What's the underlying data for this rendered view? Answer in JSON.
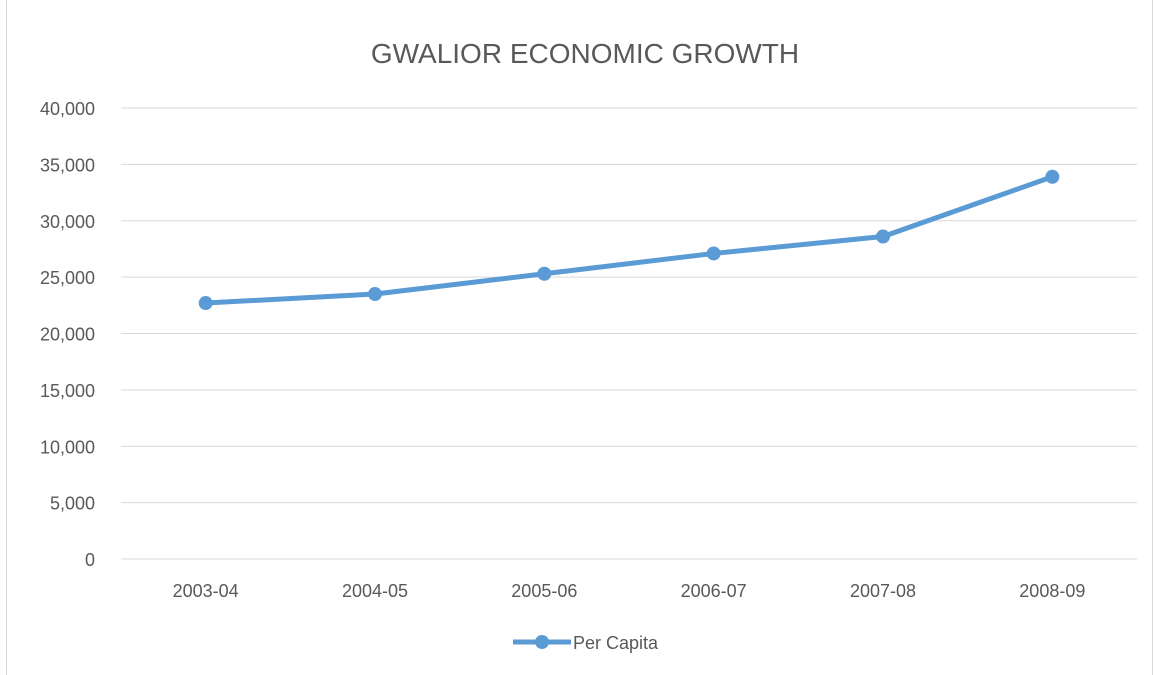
{
  "chart_data": {
    "type": "line",
    "title": "GWALIOR ECONOMIC GROWTH",
    "categories": [
      "2003-04",
      "2004-05",
      "2005-06",
      "2006-07",
      "2007-08",
      "2008-09"
    ],
    "series": [
      {
        "name": "Per Capita",
        "values": [
          22700,
          23500,
          25300,
          27100,
          28600,
          33900
        ]
      }
    ],
    "yticks": [
      "0",
      "5,000",
      "10,000",
      "15,000",
      "20,000",
      "25,000",
      "30,000",
      "35,000",
      "40,000"
    ],
    "ylim": [
      0,
      40000
    ],
    "grid": true,
    "legend": "bottom"
  },
  "colors": {
    "series": "#5b9bd5",
    "grid": "#d9d9d9",
    "text": "#595959"
  }
}
